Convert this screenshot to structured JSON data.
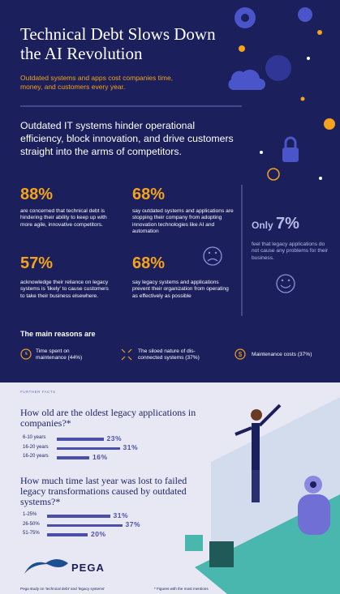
{
  "header": {
    "title": "Technical Debt Slows Down the AI Revolution",
    "subtitle": "Outdated systems and apps cost companies time, money, and customers every year."
  },
  "intro": "Outdated IT systems hinder operational efficiency, block innovation, and drive customers straight into the arms of competitors.",
  "stats": [
    {
      "value": "88%",
      "text": "are concerned that technical debt is hindering their ability to keep up with more agile, innovative competitors."
    },
    {
      "value": "68%",
      "text": "say outdated systems and applications are stopping their company from adopting innovation technologies like AI and automation"
    },
    {
      "value": "57%",
      "text": "acknowledge their reliance on legacy systems is 'likely' to cause customers to take their business elsewhere."
    },
    {
      "value": "68%",
      "text": "say legacy systems and applications prevent their organization from operating as effectively as possible"
    }
  ],
  "only_stat": {
    "prefix": "Only",
    "value": "7%",
    "text": "feel that legacy applications do not cause any problems for their business."
  },
  "reasons": {
    "heading": "The main reasons are",
    "items": [
      "Time spent on maintenance (44%)",
      "The siloed nature of dis-connected systems (37%)",
      "Maintenance costs (37%)"
    ]
  },
  "further_facts": {
    "label": "FURTHER FACTS",
    "questions": [
      {
        "question": "How old are the oldest legacy applications in companies?*",
        "categories": [
          "6-10 years",
          "16-20 years",
          "16-20 years"
        ],
        "values": [
          23,
          31,
          16
        ],
        "value_labels": [
          "23%",
          "31%",
          "16%"
        ]
      },
      {
        "question": "How much time last year was lost to failed legacy transformations caused by outdated systems?*",
        "categories": [
          "1-25%",
          "26-50%",
          "51-75%"
        ],
        "values": [
          31,
          37,
          20
        ],
        "value_labels": [
          "31%",
          "37%",
          "20%"
        ]
      }
    ]
  },
  "logo": "PEGA",
  "footer": {
    "source": "Pega study on 'technical debt' and 'legacy systems'",
    "note": "* Figures with the most mentions"
  }
}
